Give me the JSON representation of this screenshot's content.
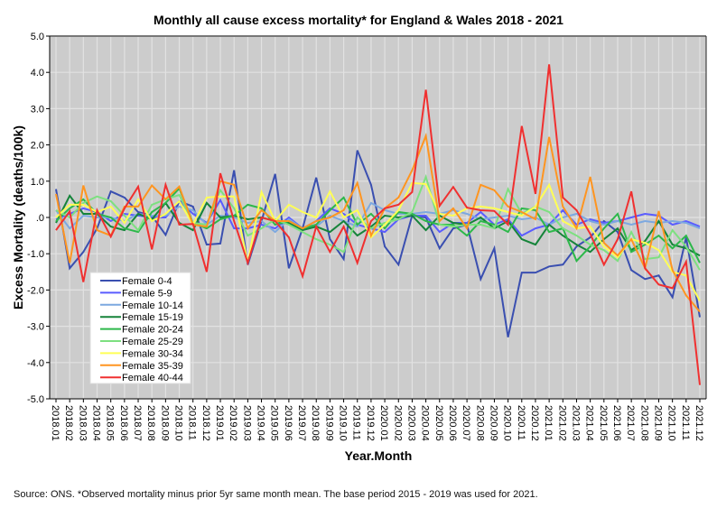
{
  "chart_data": {
    "type": "line",
    "title": "Monthly all cause excess mortality* for England & Wales 2018 - 2021",
    "xlabel": "Year.Month",
    "ylabel": "Excess Mortality (deaths/100k)",
    "ylim": [
      -5,
      5
    ],
    "yticks": [
      5,
      4,
      3,
      2,
      1,
      0,
      -1,
      -2,
      -3,
      -4,
      -5
    ],
    "ytick_labels": [
      "5.0",
      "4.0",
      "3.0",
      "2.0",
      "1.0",
      ".0",
      "-1.0",
      "-2.0",
      "-3.0",
      "-4.0",
      "-5.0"
    ],
    "grid": true,
    "legend_position": "lower-left",
    "x": [
      "2018.01",
      "2018.02",
      "2018.03",
      "2018.04",
      "2018.05",
      "2018.06",
      "2018.07",
      "2018.08",
      "2018.09",
      "2018.10",
      "2018.11",
      "2018.12",
      "2019.01",
      "2019.02",
      "2019.03",
      "2019.04",
      "2019.05",
      "2019.06",
      "2019.07",
      "2019.08",
      "2019.09",
      "2019.10",
      "2019.11",
      "2019.12",
      "2020.01",
      "2020.02",
      "2020.03",
      "2020.04",
      "2020.05",
      "2020.06",
      "2020.07",
      "2020.08",
      "2020.09",
      "2020.10",
      "2020.11",
      "2020.12",
      "2021.01",
      "2021.02",
      "2021.03",
      "2021.04",
      "2021.05",
      "2021.06",
      "2021.07",
      "2021.08",
      "2021.09",
      "2021.10",
      "2021.11",
      "2021.12"
    ],
    "series": [
      {
        "name": "Female 0-4",
        "color": "#3a4fb0",
        "values": [
          0.78,
          -1.4,
          -0.95,
          -0.3,
          0.72,
          0.55,
          0.15,
          0.05,
          -0.48,
          0.45,
          0.3,
          -0.75,
          -0.72,
          1.3,
          -1.3,
          -0.1,
          1.2,
          -1.4,
          -0.3,
          1.1,
          -0.6,
          -1.15,
          1.85,
          0.9,
          -0.8,
          -1.3,
          0.05,
          0.0,
          -0.85,
          -0.3,
          -0.2,
          -1.7,
          -0.85,
          -3.3,
          -1.52,
          -1.52,
          -1.35,
          -1.3,
          -0.8,
          -0.55,
          -0.1,
          -0.4,
          -1.45,
          -1.7,
          -1.6,
          -2.2,
          -0.55,
          -2.75
        ]
      },
      {
        "name": "Female 5-9",
        "color": "#5a5cff",
        "values": [
          -0.05,
          0.1,
          0.25,
          0.15,
          -0.1,
          0.1,
          0.05,
          0.0,
          0.0,
          0.45,
          0.1,
          -0.15,
          0.48,
          -0.3,
          -0.3,
          -0.2,
          -0.3,
          0.0,
          -0.3,
          -0.1,
          0.25,
          0.1,
          -0.2,
          -0.3,
          -0.4,
          -0.05,
          0.05,
          0.05,
          -0.4,
          -0.15,
          -0.15,
          0.15,
          -0.2,
          -0.05,
          -0.5,
          -0.3,
          -0.2,
          0.2,
          -0.2,
          -0.05,
          -0.15,
          -0.1,
          0.0,
          0.1,
          0.05,
          -0.2,
          -0.1,
          -0.25
        ]
      },
      {
        "name": "Female 10-14",
        "color": "#7ca8e0",
        "values": [
          0.2,
          -0.3,
          0.05,
          0.0,
          0.0,
          -0.1,
          0.1,
          0.05,
          0.05,
          0.3,
          0.2,
          -0.2,
          0.05,
          0.0,
          -0.15,
          -0.1,
          -0.4,
          -0.05,
          -0.3,
          -0.25,
          0.05,
          -0.1,
          -0.25,
          0.4,
          0.2,
          0.1,
          0.1,
          0.15,
          0.1,
          0.2,
          0.1,
          -0.05,
          0.0,
          0.05,
          -0.05,
          0.0,
          -0.2,
          0.0,
          0.1,
          -0.1,
          -0.2,
          -0.1,
          -0.2,
          -0.1,
          -0.15,
          -0.1,
          -0.15,
          -0.3
        ]
      },
      {
        "name": "Female 15-19",
        "color": "#16843a",
        "values": [
          -0.15,
          0.6,
          0.1,
          0.1,
          -0.25,
          -0.35,
          0.1,
          -0.05,
          0.4,
          -0.15,
          -0.35,
          0.4,
          0.0,
          0.05,
          -0.05,
          0.0,
          -0.1,
          -0.15,
          -0.35,
          -0.25,
          -0.4,
          -0.1,
          -0.5,
          -0.25,
          0.05,
          0.0,
          0.05,
          -0.35,
          0.05,
          -0.15,
          -0.2,
          0.0,
          -0.3,
          -0.1,
          -0.6,
          -0.75,
          -0.2,
          -0.5,
          -0.75,
          -0.95,
          -0.6,
          -0.3,
          -0.9,
          -0.65,
          -0.1,
          -0.75,
          -0.85,
          -1.05
        ]
      },
      {
        "name": "Female 20-24",
        "color": "#2db84a",
        "values": [
          -0.1,
          0.25,
          0.5,
          0.1,
          0.0,
          -0.3,
          -0.4,
          0.15,
          0.4,
          0.8,
          -0.15,
          -0.3,
          -0.05,
          0.05,
          0.35,
          0.25,
          -0.2,
          -0.1,
          -0.3,
          -0.2,
          0.2,
          0.55,
          -0.2,
          0.1,
          -0.3,
          0.15,
          0.1,
          -0.1,
          -0.2,
          -0.2,
          -0.5,
          -0.1,
          -0.2,
          -0.4,
          0.25,
          0.2,
          -0.4,
          -0.3,
          -1.2,
          -0.8,
          -0.3,
          0.1,
          -0.95,
          -0.75,
          -0.5,
          -0.85,
          -0.5,
          -1.25
        ]
      },
      {
        "name": "Female 25-29",
        "color": "#7de080",
        "values": [
          0.2,
          0.0,
          0.4,
          0.58,
          0.45,
          0.05,
          -0.35,
          0.35,
          0.5,
          0.62,
          -0.15,
          -0.2,
          0.75,
          0.25,
          -0.5,
          -0.3,
          -0.05,
          -0.2,
          -0.4,
          -0.6,
          -0.75,
          -0.95,
          0.0,
          -0.3,
          -0.15,
          -0.05,
          0.15,
          1.12,
          -0.2,
          -0.25,
          -0.2,
          -0.2,
          -0.3,
          0.78,
          0.1,
          0.3,
          0.15,
          -0.3,
          -0.5,
          -0.75,
          -0.9,
          -1.2,
          -0.4,
          -1.15,
          -1.1,
          -0.35,
          -0.8,
          -1.45
        ]
      },
      {
        "name": "Female 30-34",
        "color": "#ffff55",
        "values": [
          0.0,
          0.35,
          0.35,
          0.15,
          0.3,
          -0.15,
          0.5,
          -0.1,
          0.1,
          0.45,
          -0.2,
          0.55,
          0.58,
          0.58,
          -1.25,
          0.7,
          -0.1,
          0.35,
          0.15,
          0.0,
          0.72,
          0.0,
          0.2,
          -0.55,
          -0.2,
          0.2,
          0.95,
          0.92,
          0.1,
          0.05,
          0.25,
          0.3,
          0.25,
          0.15,
          0.05,
          0.3,
          0.9,
          -0.1,
          -0.3,
          -0.25,
          -0.8,
          -1.1,
          -0.6,
          -0.7,
          -0.9,
          -1.5,
          -1.6,
          -2.3
        ]
      },
      {
        "name": "Female 35-39",
        "color": "#ff9520",
        "values": [
          0.65,
          -1.25,
          0.88,
          -0.35,
          -0.5,
          0.3,
          0.3,
          0.88,
          0.5,
          0.85,
          -0.2,
          -0.25,
          1.0,
          0.9,
          -0.3,
          0.2,
          -0.1,
          -0.1,
          -0.3,
          -0.1,
          0.0,
          0.2,
          0.95,
          -0.5,
          0.25,
          0.55,
          1.3,
          2.25,
          -0.1,
          0.25,
          -0.3,
          0.9,
          0.75,
          0.3,
          0.15,
          -0.05,
          2.22,
          0.3,
          -0.3,
          1.12,
          -0.7,
          -1.05,
          -0.6,
          -1.4,
          0.18,
          -1.45,
          -2.15,
          -2.6
        ]
      },
      {
        "name": "Female 40-44",
        "color": "#f03030",
        "values": [
          -0.35,
          0.17,
          -1.78,
          0.2,
          -0.53,
          0.25,
          0.85,
          -0.88,
          0.9,
          -0.2,
          -0.18,
          -1.5,
          1.22,
          -0.1,
          -1.25,
          0.0,
          -0.1,
          -0.55,
          -1.62,
          -0.25,
          -0.95,
          -0.25,
          -1.25,
          -0.1,
          0.25,
          0.35,
          0.7,
          3.52,
          0.32,
          0.84,
          0.27,
          0.2,
          0.18,
          -0.2,
          2.52,
          0.65,
          4.22,
          0.55,
          0.2,
          -0.45,
          -1.3,
          -0.6,
          0.72,
          -1.4,
          -1.85,
          -1.95,
          -1.22,
          -4.62
        ]
      }
    ]
  },
  "source_note": "Source: ONS. *Observed mortality minus prior 5yr same month mean. The base period 2015 - 2019 was used for 2021."
}
